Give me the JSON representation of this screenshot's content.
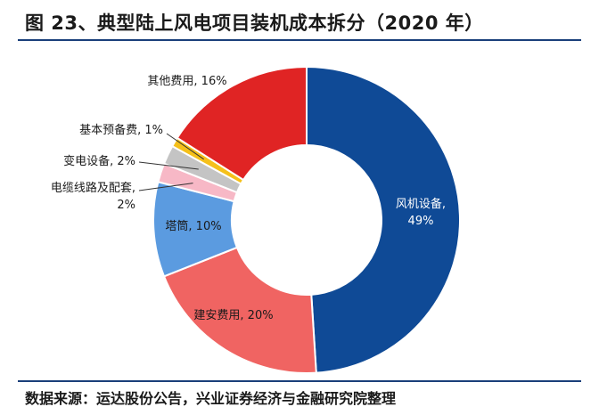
{
  "title": "图 23、典型陆上风电项目装机成本拆分（2020 年）",
  "source": "数据来源：运达股份公告，兴业证券经济与金融研究院整理",
  "chart_data": {
    "type": "pie",
    "title": "图 23、典型陆上风电项目装机成本拆分（2020 年）",
    "categories": [
      "风机设备",
      "建安费用",
      "塔筒",
      "电缆线路及配套",
      "变电设备",
      "基本预备费",
      "其他费用"
    ],
    "values": [
      49,
      20,
      10,
      2,
      2,
      1,
      16
    ],
    "labels": [
      "风机设备,\n49%",
      "建安费用, 20%",
      "塔筒, 10%",
      "电缆线路及配套,\n2%",
      "变电设备, 2%",
      "基本预备费, 1%",
      "其他费用, 16%"
    ],
    "colors": [
      "#0f4a96",
      "#f06462",
      "#5b9be0",
      "#f7b8c6",
      "#c4c4c4",
      "#f5c01a",
      "#e02424"
    ],
    "donut": true
  }
}
